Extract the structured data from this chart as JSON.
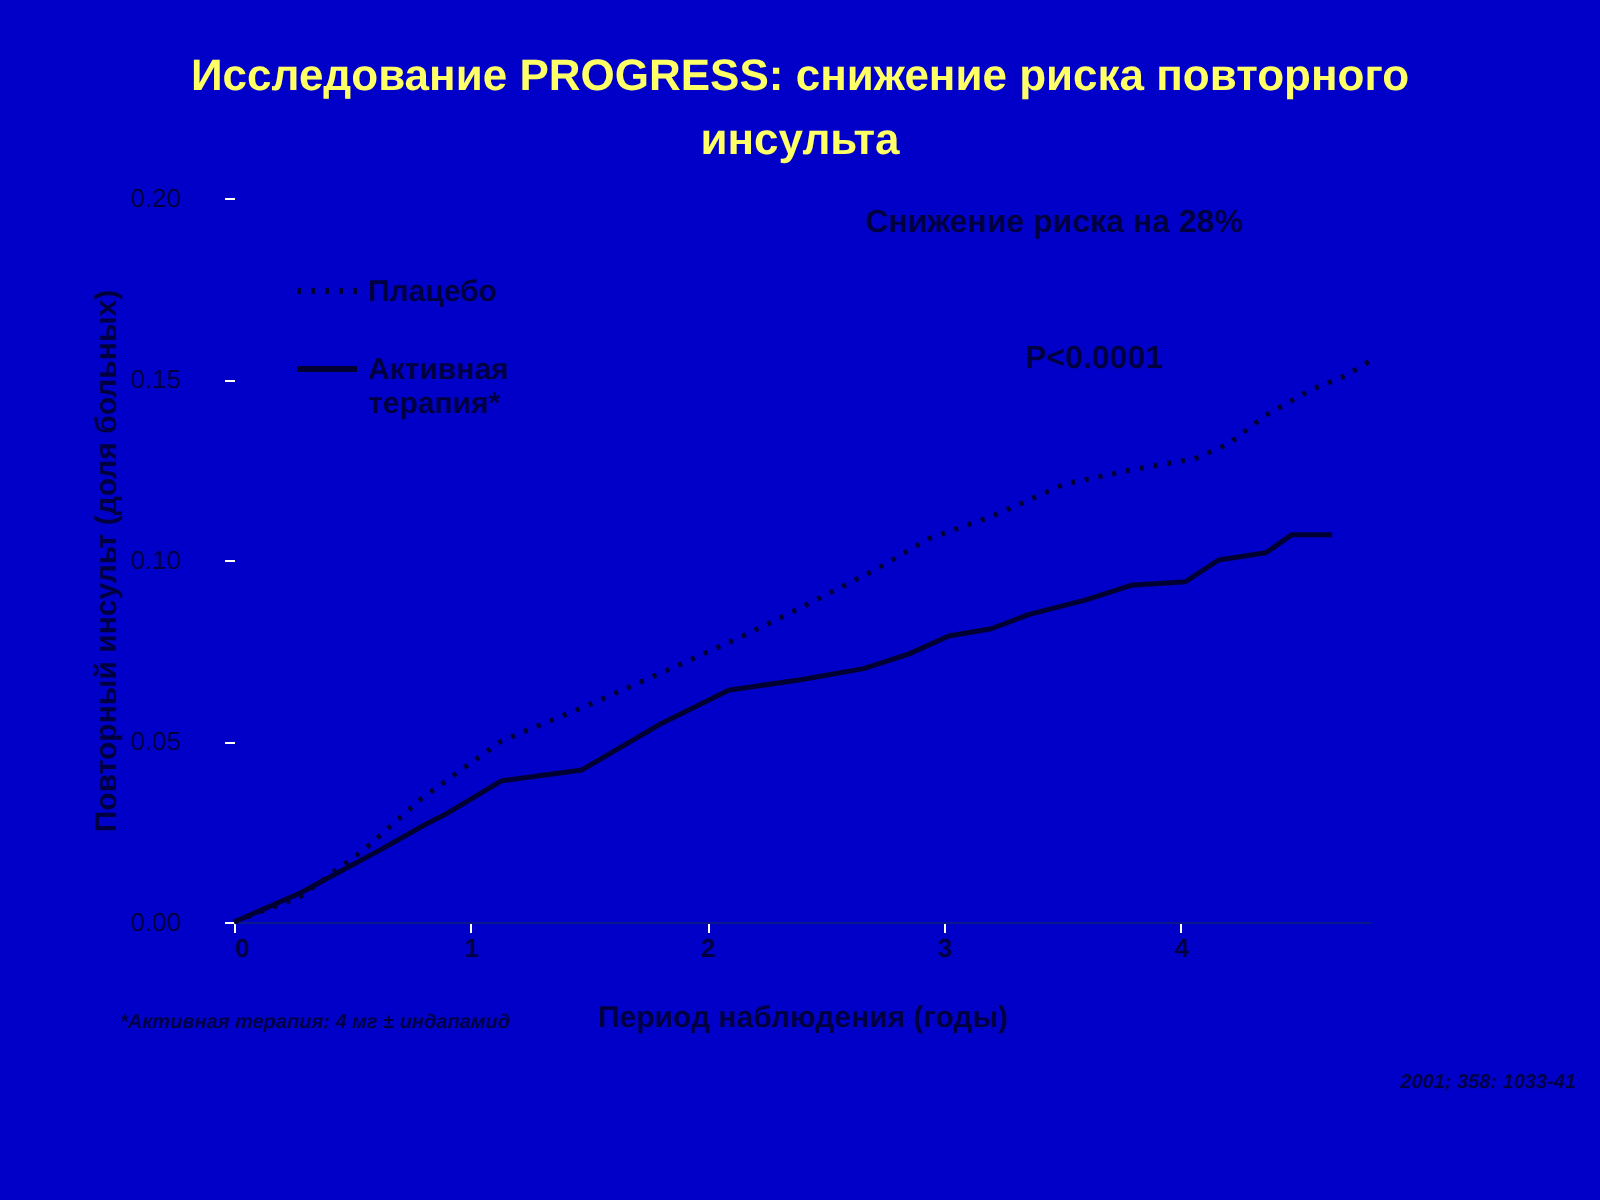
{
  "chart_data": {
    "type": "line",
    "title": "Исследование PROGRESS: снижение риска повторного инсульта",
    "xlabel": "Период наблюдения (годы)",
    "ylabel": "Повторный инсульт (доля больных)",
    "xlim": [
      0,
      4.8
    ],
    "xticks": [
      0,
      1,
      2,
      3,
      4
    ],
    "ylim": [
      0,
      0.2
    ],
    "yticks": [
      {
        "value": 0,
        "label": "0.00"
      },
      {
        "value": 0.05,
        "label": "0.05"
      },
      {
        "value": 0.1,
        "label": "0.10"
      },
      {
        "value": 0.15,
        "label": "0.15"
      },
      {
        "value": 0.2,
        "label": "0.20"
      }
    ],
    "legend": "top left",
    "grid": false,
    "marker": "none",
    "series": [
      {
        "name": "Плацебо",
        "color": "#000033",
        "line_style": "dotted",
        "x": [
          0,
          0.28,
          0.55,
          0.79,
          1.13,
          1.5,
          1.88,
          2.15,
          2.4,
          2.7,
          2.94,
          3.2,
          3.51,
          3.8,
          4.06,
          4.2,
          4.36,
          4.55,
          4.7,
          4.8
        ],
        "values": [
          0,
          0.007,
          0.02,
          0.034,
          0.05,
          0.06,
          0.071,
          0.079,
          0.087,
          0.097,
          0.106,
          0.112,
          0.121,
          0.125,
          0.128,
          0.132,
          0.14,
          0.147,
          0.151,
          0.155
        ]
      },
      {
        "name": "Активная терапия*",
        "color": "#000033",
        "line_style": "solid",
        "x": [
          0,
          0.28,
          0.62,
          0.81,
          0.9,
          1.13,
          1.47,
          1.81,
          2.09,
          2.4,
          2.66,
          2.85,
          3.02,
          3.2,
          3.36,
          3.6,
          3.79,
          4.02,
          4.16,
          4.36,
          4.47,
          4.64
        ],
        "values": [
          0,
          0.008,
          0.02,
          0.027,
          0.03,
          0.039,
          0.042,
          0.055,
          0.064,
          0.067,
          0.07,
          0.074,
          0.079,
          0.081,
          0.085,
          0.089,
          0.093,
          0.094,
          0.1,
          0.102,
          0.107,
          0.107
        ]
      }
    ],
    "annotations": [
      "Снижение риска на 28%",
      "P<0.0001",
      "*Активная терапия: 4 мг ± индапамид",
      "2001; 358: 1033-41"
    ]
  }
}
